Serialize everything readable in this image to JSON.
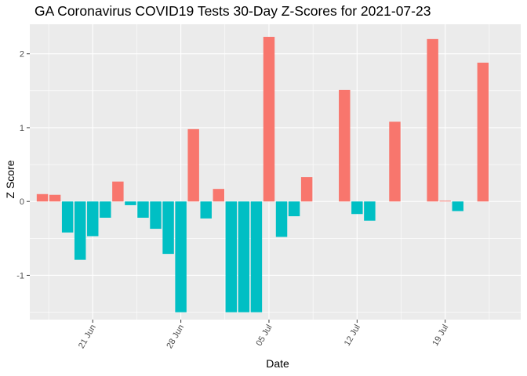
{
  "chart_data": {
    "type": "bar",
    "title": "GA Coronavirus COVID19 Tests 30-Day Z-Scores for 2021-07-23",
    "xlabel": "Date",
    "ylabel": "Z Score",
    "x_tick_labels": [
      "21 Jun",
      "28 Jun",
      "05 Jul",
      "12 Jul",
      "19 Jul"
    ],
    "x_tick_dates": [
      "2021-06-21",
      "2021-06-28",
      "2021-07-05",
      "2021-07-12",
      "2021-07-19"
    ],
    "y_ticks": [
      -1,
      0,
      1,
      2
    ],
    "ylim": [
      -1.6,
      2.4
    ],
    "xlim": [
      "2021-06-16",
      "2021-07-25"
    ],
    "grid": true,
    "legend": "none",
    "colors": {
      "positive": "#F8766D",
      "negative": "#00BFC4",
      "panel": "#EBEBEB",
      "grid": "#FFFFFF"
    },
    "dates": [
      "2021-06-17",
      "2021-06-18",
      "2021-06-19",
      "2021-06-20",
      "2021-06-21",
      "2021-06-22",
      "2021-06-23",
      "2021-06-24",
      "2021-06-25",
      "2021-06-26",
      "2021-06-27",
      "2021-06-28",
      "2021-06-29",
      "2021-06-30",
      "2021-07-01",
      "2021-07-02",
      "2021-07-03",
      "2021-07-04",
      "2021-07-05",
      "2021-07-06",
      "2021-07-07",
      "2021-07-08",
      "2021-07-09",
      "2021-07-10",
      "2021-07-11",
      "2021-07-12",
      "2021-07-13",
      "2021-07-14",
      "2021-07-15",
      "2021-07-16",
      "2021-07-17",
      "2021-07-18",
      "2021-07-19",
      "2021-07-20",
      "2021-07-21",
      "2021-07-22",
      "2021-07-23"
    ],
    "values": [
      0.1,
      0.09,
      -0.42,
      -0.79,
      -0.47,
      -0.22,
      0.27,
      -0.05,
      -0.22,
      -0.37,
      -0.71,
      -1.5,
      0.98,
      -0.23,
      0.17,
      -1.5,
      -1.5,
      -1.5,
      2.23,
      -0.48,
      -0.2,
      0.33,
      null,
      null,
      1.51,
      -0.17,
      -0.26,
      null,
      1.08,
      null,
      null,
      2.2,
      0.01,
      -0.13,
      null,
      1.88,
      null
    ]
  }
}
